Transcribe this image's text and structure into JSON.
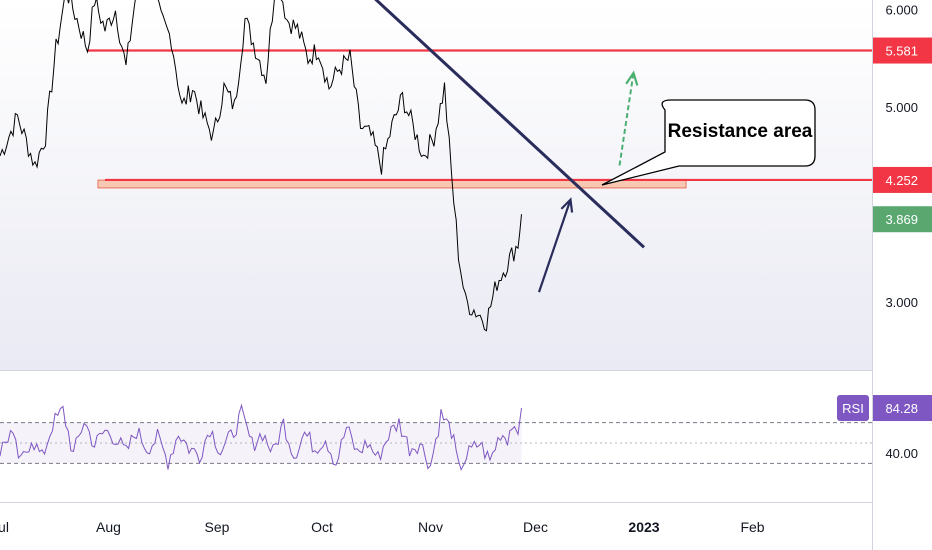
{
  "chart_data": [
    {
      "type": "line",
      "panel": "price",
      "y_axis": {
        "ticks": [
          {
            "value": 6.0,
            "label": "6.000"
          },
          {
            "value": 5.0,
            "label": "5.000"
          },
          {
            "value": 3.0,
            "label": "3.000"
          }
        ],
        "ylim": [
          2.3,
          6.1
        ]
      },
      "x_axis": {
        "ticks": [
          {
            "label": "Jul",
            "day": 0
          },
          {
            "label": "Aug",
            "day": 31
          },
          {
            "label": "Sep",
            "day": 62
          },
          {
            "label": "Oct",
            "day": 92
          },
          {
            "label": "Nov",
            "day": 123
          },
          {
            "label": "Dec",
            "day": 153
          },
          {
            "label": "2023",
            "day": 184
          },
          {
            "label": "Feb",
            "day": 215
          }
        ],
        "xlim": [
          0,
          248
        ]
      },
      "series_points": [
        [
          0,
          4.5
        ],
        [
          5,
          4.9
        ],
        [
          10,
          4.4
        ],
        [
          13,
          4.7
        ],
        [
          16,
          5.6
        ],
        [
          19,
          6.2
        ],
        [
          22,
          5.9
        ],
        [
          25,
          5.6
        ],
        [
          27,
          6.1
        ],
        [
          30,
          5.8
        ],
        [
          33,
          6.0
        ],
        [
          36,
          5.4
        ],
        [
          39,
          6.2
        ],
        [
          43,
          6.3
        ],
        [
          46,
          5.9
        ],
        [
          49,
          5.7
        ],
        [
          52,
          5.0
        ],
        [
          55,
          5.2
        ],
        [
          58,
          4.9
        ],
        [
          61,
          4.7
        ],
        [
          64,
          5.2
        ],
        [
          67,
          5.0
        ],
        [
          70,
          5.9
        ],
        [
          73,
          5.6
        ],
        [
          76,
          5.3
        ],
        [
          79,
          6.4
        ],
        [
          82,
          5.9
        ],
        [
          85,
          5.8
        ],
        [
          88,
          5.5
        ],
        [
          91,
          5.6
        ],
        [
          94,
          5.2
        ],
        [
          97,
          5.4
        ],
        [
          100,
          5.5
        ],
        [
          103,
          4.8
        ],
        [
          106,
          4.7
        ],
        [
          109,
          4.4
        ],
        [
          112,
          4.8
        ],
        [
          115,
          5.1
        ],
        [
          118,
          4.8
        ],
        [
          121,
          4.5
        ],
        [
          124,
          4.7
        ],
        [
          127,
          5.2
        ],
        [
          129,
          4.3
        ],
        [
          131,
          3.5
        ],
        [
          133,
          3.0
        ],
        [
          136,
          2.9
        ],
        [
          139,
          2.8
        ],
        [
          142,
          3.2
        ],
        [
          145,
          3.4
        ],
        [
          148,
          3.6
        ],
        [
          149,
          3.9
        ]
      ],
      "last_close": {
        "value": 3.869,
        "label": "3.869"
      },
      "levels": [
        {
          "value": 5.581,
          "label": "5.581",
          "color": "#f23645",
          "x_start": 25
        },
        {
          "value": 4.252,
          "label": "4.252",
          "color": "#f23645",
          "x_start": 30
        }
      ],
      "zones": [
        {
          "y_from": 4.17,
          "y_to": 4.25,
          "x_from": 28,
          "x_to": 196,
          "color": "#f8b89a"
        }
      ],
      "trendline": {
        "points": [
          [
            100,
            6.35
          ],
          [
            184,
            3.56
          ]
        ],
        "color": "#2a2c5c"
      },
      "arrows": [
        {
          "from": [
            154,
            3.1
          ],
          "to": [
            163,
            4.05
          ],
          "color": "#2a2c5c",
          "style": "solid"
        },
        {
          "from": [
            177,
            4.4
          ],
          "to": [
            181,
            5.35
          ],
          "color": "#4caf72",
          "style": "dashed"
        }
      ],
      "annotations": [
        {
          "text": "Resistance area",
          "anchor": [
            172,
            4.2
          ],
          "placement": "top-right"
        }
      ],
      "colors": {
        "line": "#000000",
        "axis_text": "#131722"
      }
    },
    {
      "type": "line",
      "panel": "RSI",
      "name": "RSI",
      "y_axis": {
        "ticks": [
          {
            "value": 40,
            "label": "40.00"
          }
        ],
        "ylim": [
          0,
          100
        ]
      },
      "reference_lines": [
        70,
        50,
        30
      ],
      "last_value": {
        "value": 84.28,
        "label": "84.28"
      },
      "series_points": [
        [
          0,
          42
        ],
        [
          3,
          60
        ],
        [
          6,
          30
        ],
        [
          9,
          55
        ],
        [
          12,
          35
        ],
        [
          15,
          68
        ],
        [
          18,
          82
        ],
        [
          21,
          38
        ],
        [
          24,
          72
        ],
        [
          27,
          48
        ],
        [
          30,
          62
        ],
        [
          33,
          55
        ],
        [
          36,
          40
        ],
        [
          39,
          62
        ],
        [
          42,
          45
        ],
        [
          45,
          55
        ],
        [
          48,
          32
        ],
        [
          51,
          60
        ],
        [
          54,
          45
        ],
        [
          57,
          38
        ],
        [
          60,
          65
        ],
        [
          63,
          42
        ],
        [
          66,
          56
        ],
        [
          69,
          78
        ],
        [
          72,
          48
        ],
        [
          75,
          60
        ],
        [
          78,
          40
        ],
        [
          81,
          70
        ],
        [
          84,
          38
        ],
        [
          87,
          60
        ],
        [
          90,
          45
        ],
        [
          93,
          55
        ],
        [
          96,
          30
        ],
        [
          99,
          65
        ],
        [
          102,
          40
        ],
        [
          105,
          50
        ],
        [
          108,
          35
        ],
        [
          111,
          58
        ],
        [
          114,
          70
        ],
        [
          117,
          45
        ],
        [
          120,
          50
        ],
        [
          123,
          28
        ],
        [
          126,
          78
        ],
        [
          129,
          62
        ],
        [
          131,
          25
        ],
        [
          134,
          40
        ],
        [
          137,
          50
        ],
        [
          140,
          32
        ],
        [
          143,
          60
        ],
        [
          145,
          55
        ],
        [
          147,
          75
        ],
        [
          148,
          50
        ],
        [
          149,
          84.28
        ]
      ],
      "colors": {
        "line": "#7e57c2",
        "badge": "#7e57c2"
      }
    }
  ]
}
